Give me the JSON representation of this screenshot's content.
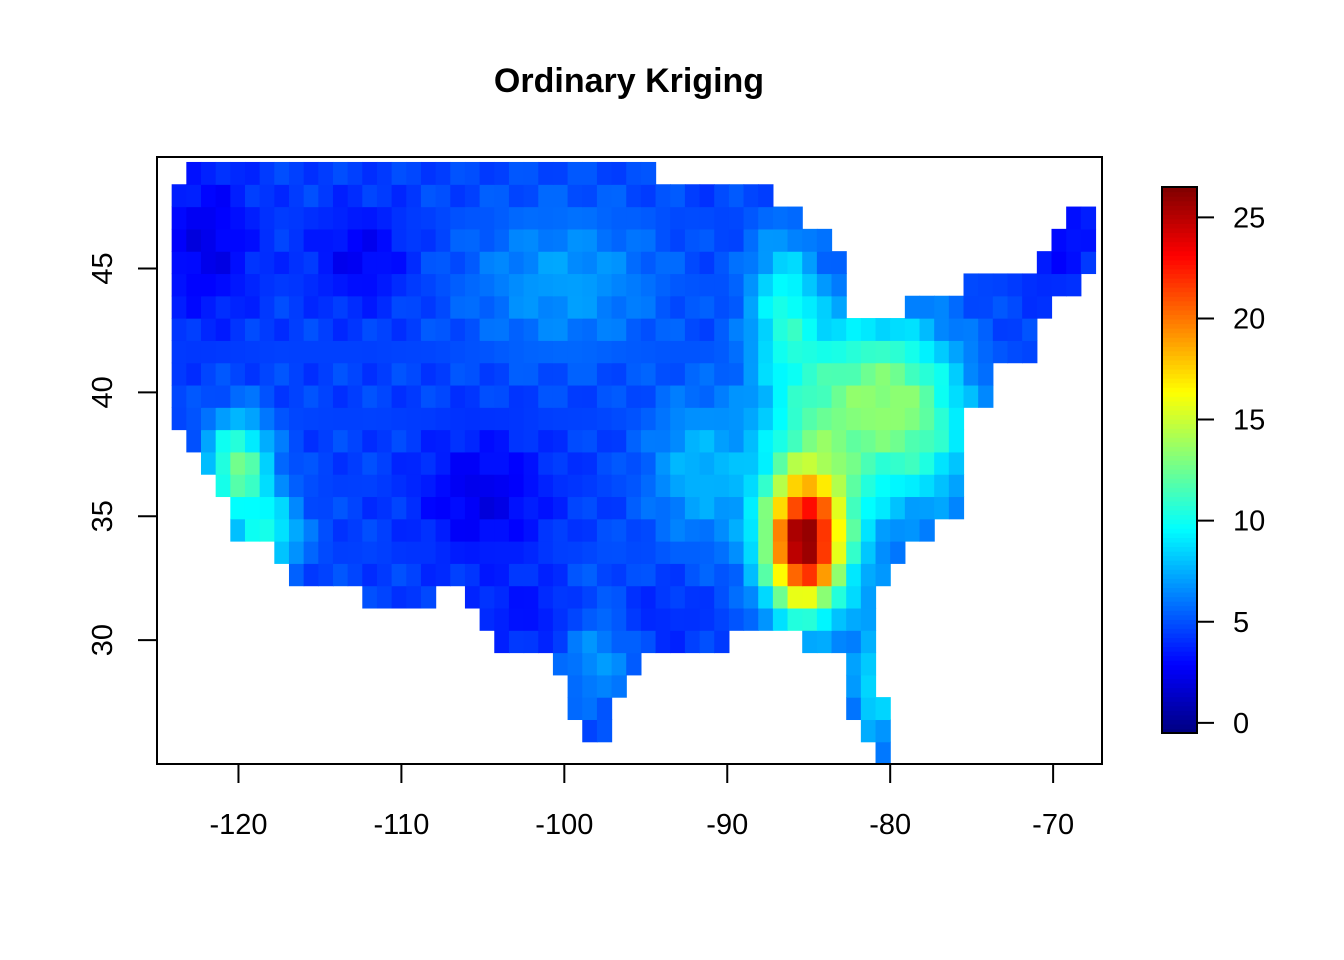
{
  "chart_data": {
    "type": "heatmap",
    "title": "Ordinary Kriging",
    "xlabel": "",
    "ylabel": "",
    "xlim": [
      -125,
      -67
    ],
    "ylim": [
      25,
      49.5
    ],
    "x_ticks": [
      -120,
      -110,
      -100,
      -90,
      -80,
      -70
    ],
    "x_tick_labels": [
      "-120",
      "-110",
      "-100",
      "-90",
      "-80",
      "-70"
    ],
    "y_ticks": [
      30,
      35,
      40,
      45
    ],
    "y_tick_labels": [
      "30",
      "35",
      "40",
      "45"
    ],
    "colorbar": {
      "range": [
        -0.5,
        26.5
      ],
      "ticks": [
        0,
        5,
        10,
        15,
        20,
        25
      ],
      "tick_labels": [
        "0",
        "5",
        "10",
        "15",
        "20",
        "25"
      ],
      "palette": [
        "#00007F",
        "#0000FF",
        "#007FFF",
        "#00FFFF",
        "#7FFF7F",
        "#FFFF00",
        "#FF7F00",
        "#FF0000",
        "#7F0000"
      ]
    },
    "grid_resolution_deg": 0.9,
    "peak": {
      "lon": -85.3,
      "lat": 33.8,
      "value": 22
    },
    "grid": false,
    "legend": "right"
  }
}
